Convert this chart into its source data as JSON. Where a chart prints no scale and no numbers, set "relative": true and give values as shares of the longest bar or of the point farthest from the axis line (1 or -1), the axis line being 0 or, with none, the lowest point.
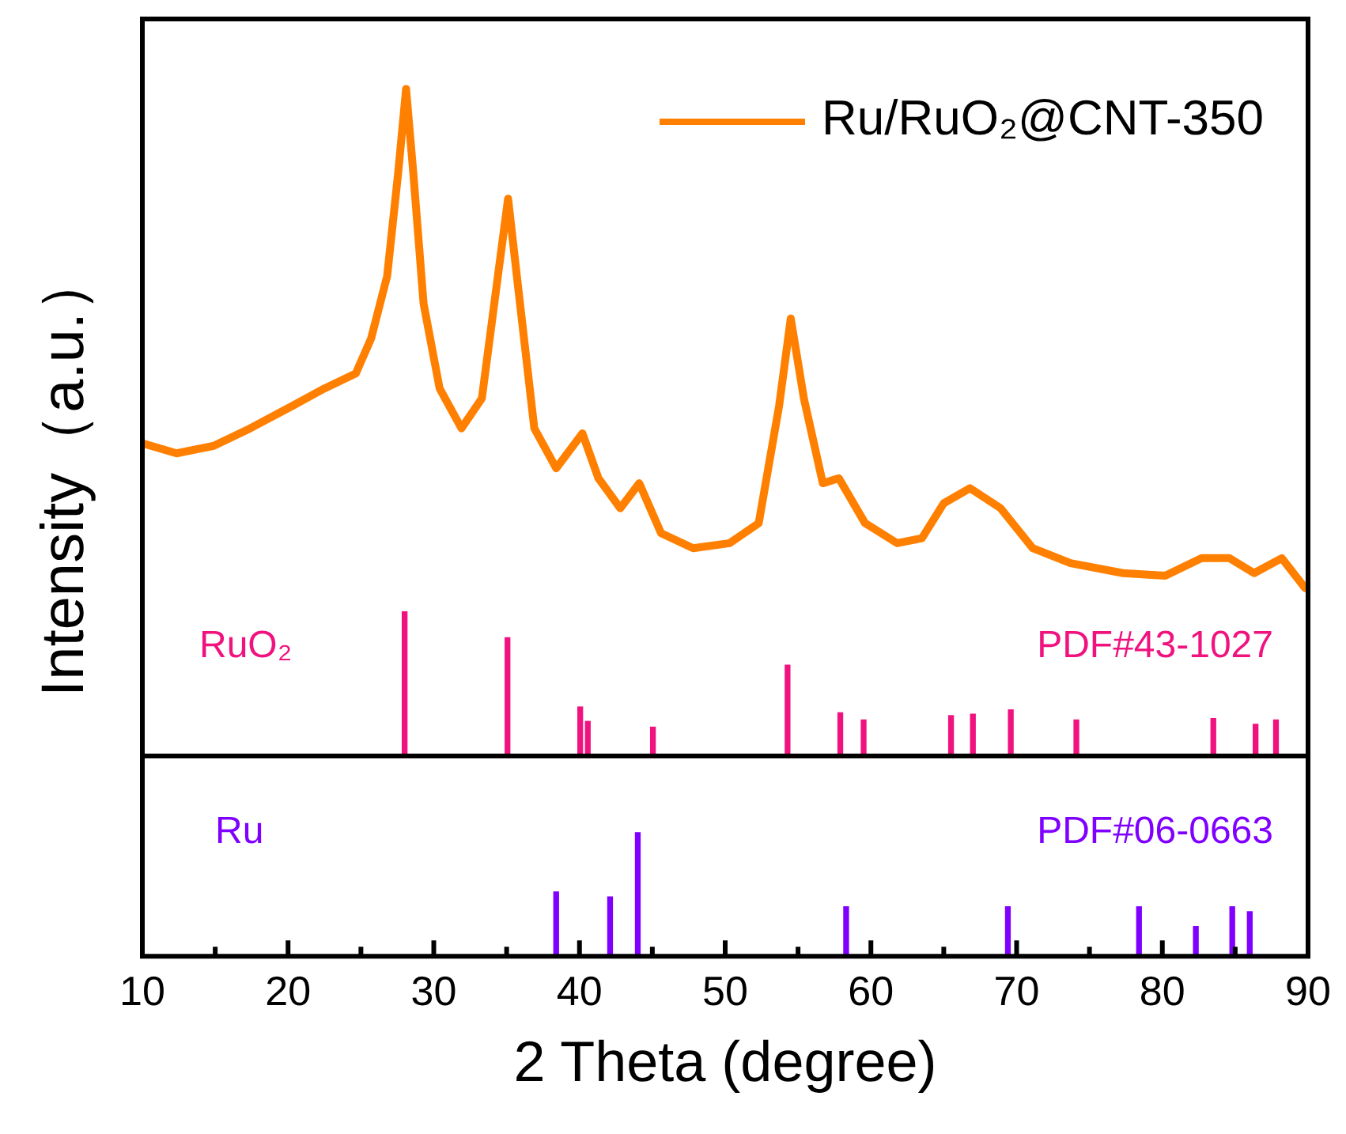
{
  "chart_data": [
    {
      "type": "line",
      "ylabel": "Intensity（a.u.）",
      "relative": true,
      "xlim": [
        10,
        90
      ],
      "tick_labels": false,
      "legend": "top right",
      "x": [
        10,
        12.35,
        14.9,
        17.4,
        20.3,
        22.5,
        24.65,
        25.7,
        26.8,
        27.55,
        28.1,
        28.6,
        29.3,
        30.4,
        31.9,
        33.3,
        34.4,
        35.1,
        35.8,
        36.9,
        38.4,
        40.2,
        41.3,
        42.8,
        44.1,
        45.6,
        47.8,
        50.3,
        52.3,
        53.7,
        54.5,
        55.4,
        56.7,
        57.8,
        59.6,
        61.8,
        63.5,
        65.0,
        66.8,
        68.9,
        71.1,
        73.7,
        77.3,
        80.2,
        82.7,
        84.6,
        86.3,
        88.2,
        89.8
      ],
      "series": [
        {
          "name": "Ru/RuO₂@CNT-350",
          "color": "#ff8000",
          "values": [
            0.29,
            0.27,
            0.285,
            0.32,
            0.365,
            0.4,
            0.43,
            0.5,
            0.625,
            0.83,
            1,
            0.83,
            0.57,
            0.4,
            0.32,
            0.38,
            0.625,
            0.78,
            0.6,
            0.32,
            0.24,
            0.31,
            0.22,
            0.16,
            0.21,
            0.11,
            0.08,
            0.09,
            0.13,
            0.365,
            0.54,
            0.38,
            0.21,
            0.22,
            0.13,
            0.09,
            0.1,
            0.17,
            0.2,
            0.16,
            0.08,
            0.05,
            0.03,
            0.025,
            0.06,
            0.06,
            0.03,
            0.06,
            0
          ]
        }
      ]
    },
    {
      "type": "bar",
      "relative": true,
      "xlim": [
        10,
        90
      ],
      "tick_labels": false,
      "annotations": [
        "PDF#43-1027"
      ],
      "x": [
        28.0,
        35.06,
        40.05,
        40.57,
        45.04,
        54.28,
        57.9,
        59.5,
        65.5,
        67.0,
        69.6,
        74.1,
        83.5,
        86.4,
        87.8
      ],
      "series": [
        {
          "name": "RuO₂",
          "color": "#f0127f",
          "values": [
            1,
            0.82,
            0.34,
            0.24,
            0.2,
            0.63,
            0.3,
            0.25,
            0.28,
            0.29,
            0.32,
            0.25,
            0.26,
            0.22,
            0.25
          ]
        }
      ]
    },
    {
      "type": "bar",
      "relative": true,
      "xlim": [
        10,
        90
      ],
      "xlabel": "2 Theta (degree)",
      "annotations": [
        "PDF#06-0663"
      ],
      "xticks": [
        10,
        {
          "value": 15,
          "label": null
        },
        20,
        {
          "value": 25,
          "label": null
        },
        30,
        {
          "value": 35,
          "label": null
        },
        40,
        {
          "value": 45,
          "label": null
        },
        50,
        {
          "value": 55,
          "label": null
        },
        60,
        {
          "value": 65,
          "label": null
        },
        70,
        {
          "value": 75,
          "label": null
        },
        80,
        {
          "value": 85,
          "label": null
        },
        90
      ],
      "x": [
        38.4,
        42.1,
        44.0,
        58.3,
        69.4,
        78.4,
        82.3,
        84.8,
        86.0
      ],
      "series": [
        {
          "name": "Ru",
          "color": "#8000ff",
          "values": [
            0.52,
            0.48,
            1,
            0.4,
            0.4,
            0.4,
            0.24,
            0.4,
            0.36
          ]
        }
      ]
    }
  ]
}
